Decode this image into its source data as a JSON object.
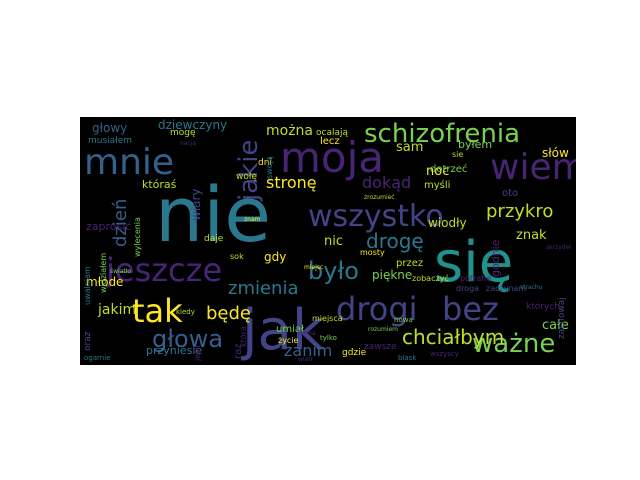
{
  "palette": {
    "background": "#000000",
    "colors": [
      "#440154",
      "#482475",
      "#414487",
      "#355f8d",
      "#2a788e",
      "#21918c",
      "#22a884",
      "#44bf70",
      "#7ad151",
      "#bddf26",
      "#fde725"
    ]
  },
  "words": [
    {
      "text": "nie",
      "color": "#2a788e"
    },
    {
      "text": "się",
      "color": "#21918c"
    },
    {
      "text": "jak",
      "color": "#414487"
    },
    {
      "text": "moja",
      "color": "#482475"
    },
    {
      "text": "mnie",
      "color": "#355f8d"
    },
    {
      "text": "wiem",
      "color": "#482475"
    },
    {
      "text": "wszystko",
      "color": "#414487"
    },
    {
      "text": "jeszcze",
      "color": "#482475"
    },
    {
      "text": "drogi",
      "color": "#414487"
    },
    {
      "text": "bez",
      "color": "#414487"
    },
    {
      "text": "tak",
      "color": "#fde725"
    },
    {
      "text": "głowa",
      "color": "#355f8d"
    },
    {
      "text": "było",
      "color": "#2a788e"
    },
    {
      "text": "schizofrenia",
      "color": "#7ad151"
    },
    {
      "text": "ważne",
      "color": "#7ad151"
    },
    {
      "text": "jakie",
      "color": "#414487"
    },
    {
      "text": "chciałbym",
      "color": "#bddf26"
    },
    {
      "text": "drogę",
      "color": "#2a788e"
    },
    {
      "text": "przykro",
      "color": "#bddf26"
    },
    {
      "text": "zmienia",
      "color": "#2a788e"
    },
    {
      "text": "dzień",
      "color": "#355f8d"
    },
    {
      "text": "będę",
      "color": "#fde725"
    },
    {
      "text": "dokąd",
      "color": "#482475"
    },
    {
      "text": "stronę",
      "color": "#fde725"
    },
    {
      "text": "zanim",
      "color": "#355f8d"
    },
    {
      "text": "jakim",
      "color": "#bddf26"
    },
    {
      "text": "można",
      "color": "#bddf26"
    },
    {
      "text": "dziewczyny",
      "color": "#2a788e"
    },
    {
      "text": "głowy",
      "color": "#355f8d"
    },
    {
      "text": "całe",
      "color": "#7ad151"
    },
    {
      "text": "znak",
      "color": "#bddf26"
    },
    {
      "text": "noc",
      "color": "#fde725"
    },
    {
      "text": "nic",
      "color": "#bddf26"
    },
    {
      "text": "sam",
      "color": "#bddf26"
    },
    {
      "text": "wiary",
      "color": "#414487"
    },
    {
      "text": "słów",
      "color": "#fde725"
    },
    {
      "text": "wiodły",
      "color": "#bddf26"
    },
    {
      "text": "godnie",
      "color": "#482475"
    },
    {
      "text": "któraś",
      "color": "#bddf26"
    },
    {
      "text": "piękne",
      "color": "#7ad151"
    },
    {
      "text": "zaprosić",
      "color": "#482475"
    },
    {
      "text": "młode",
      "color": "#fde725"
    },
    {
      "text": "gdy",
      "color": "#fde725"
    },
    {
      "text": "byłem",
      "color": "#7ad151"
    },
    {
      "text": "musiałem",
      "color": "#2a788e"
    },
    {
      "text": "myśli",
      "color": "#bddf26"
    },
    {
      "text": "dotrzeć",
      "color": "#7ad151"
    },
    {
      "text": "oto",
      "color": "#414487"
    },
    {
      "text": "przez",
      "color": "#bddf26"
    },
    {
      "text": "przyniesie",
      "color": "#2a788e"
    },
    {
      "text": "lecz",
      "color": "#fde725"
    },
    {
      "text": "ocalają",
      "color": "#bddf26"
    },
    {
      "text": "zachowaj",
      "color": "#414487"
    },
    {
      "text": "których",
      "color": "#482475"
    },
    {
      "text": "umiał",
      "color": "#7ad151"
    },
    {
      "text": "gdzie",
      "color": "#fde725"
    },
    {
      "text": "zawsze",
      "color": "#482475"
    },
    {
      "text": "życie",
      "color": "#fde725"
    },
    {
      "text": "daje",
      "color": "#bddf26"
    },
    {
      "text": "sok",
      "color": "#bddf26"
    },
    {
      "text": "raz",
      "color": "#482475"
    },
    {
      "text": "wylecenia",
      "color": "#7ad151"
    },
    {
      "text": "uwalniam",
      "color": "#2a788e"
    },
    {
      "text": "oraz",
      "color": "#414487"
    },
    {
      "text": "droga",
      "color": "#414487"
    },
    {
      "text": "zaczynam",
      "color": "#414487"
    },
    {
      "text": "wołę",
      "color": "#bddf26"
    },
    {
      "text": "dni",
      "color": "#fde725"
    },
    {
      "text": "mogę",
      "color": "#bddf26"
    },
    {
      "text": "która",
      "color": "#482475"
    },
    {
      "text": "jeśli",
      "color": "#482475"
    },
    {
      "text": "widziałem",
      "color": "#7ad151"
    },
    {
      "text": "miejsca",
      "color": "#bddf26"
    },
    {
      "text": "zobaczyć",
      "color": "#bddf26"
    },
    {
      "text": "swoją",
      "color": "#2a788e"
    },
    {
      "text": "sie",
      "color": "#bddf26"
    },
    {
      "text": "potrafię",
      "color": "#482475"
    },
    {
      "text": "mosty",
      "color": "#fde725"
    },
    {
      "text": "kiedy",
      "color": "#bddf26"
    },
    {
      "text": "tylko",
      "color": "#7ad151"
    },
    {
      "text": "nowa",
      "color": "#7ad151"
    },
    {
      "text": "blask",
      "color": "#2a788e"
    },
    {
      "text": "wszyscy",
      "color": "#482475"
    },
    {
      "text": "ogarnie",
      "color": "#2a788e"
    },
    {
      "text": "rozumiem",
      "color": "#7ad151"
    },
    {
      "text": "zrozumieć",
      "color": "#bddf26"
    },
    {
      "text": "znam",
      "color": "#fde725"
    },
    {
      "text": "forma",
      "color": "#482475"
    },
    {
      "text": "nacja",
      "color": "#482475"
    },
    {
      "text": "miejsc",
      "color": "#fde725"
    },
    {
      "text": "strachu",
      "color": "#2a788e"
    },
    {
      "text": "wiatr",
      "color": "#482475"
    },
    {
      "text": "skrzydeł",
      "color": "#482475"
    },
    {
      "text": "światło",
      "color": "#7ad151"
    }
  ]
}
